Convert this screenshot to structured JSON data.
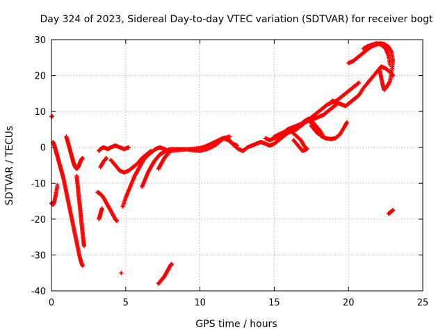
{
  "chart_data": {
    "type": "scatter",
    "title": "Day 324 of 2023, Sidereal Day-to-day VTEC variation (SDTVAR) for receiver bogt",
    "xlabel": "GPS time / hours",
    "ylabel": "SDTVAR / TECUs",
    "xlim": [
      0,
      25
    ],
    "ylim": [
      -40,
      30
    ],
    "xticks": [
      "0",
      "5",
      "10",
      "15",
      "20",
      "25"
    ],
    "yticks": [
      "-40",
      "-30",
      "-20",
      "-10",
      "0",
      "10",
      "20",
      "30"
    ],
    "grid": true,
    "marker": "+",
    "color": "#ff0000",
    "series": [
      {
        "points": [
          [
            0.0,
            8.5
          ],
          [
            0.05,
            8.7
          ],
          [
            0.0,
            -15.5
          ],
          [
            0.1,
            -16.0
          ],
          [
            0.2,
            -15.0
          ],
          [
            0.3,
            -13.0
          ],
          [
            0.4,
            -10.5
          ]
        ]
      },
      {
        "points": [
          [
            0.1,
            1.5
          ],
          [
            0.2,
            0.5
          ],
          [
            0.3,
            -1.0
          ],
          [
            0.4,
            -2.5
          ],
          [
            0.5,
            -4.0
          ],
          [
            0.6,
            -5.5
          ],
          [
            0.7,
            -7.0
          ],
          [
            0.8,
            -8.5
          ],
          [
            0.9,
            -10.5
          ],
          [
            1.0,
            -12.5
          ],
          [
            1.1,
            -14.5
          ],
          [
            1.2,
            -16.5
          ],
          [
            1.3,
            -18.5
          ],
          [
            1.4,
            -20.5
          ],
          [
            1.5,
            -22.5
          ],
          [
            1.6,
            -24.5
          ],
          [
            1.7,
            -26.5
          ],
          [
            1.8,
            -28.5
          ],
          [
            1.9,
            -30.5
          ],
          [
            2.0,
            -32.0
          ],
          [
            2.1,
            -33.0
          ]
        ]
      },
      {
        "points": [
          [
            1.0,
            3.0
          ],
          [
            1.1,
            1.5
          ],
          [
            1.2,
            0.0
          ],
          [
            1.3,
            -1.5
          ],
          [
            1.4,
            -3.0
          ],
          [
            1.5,
            -4.5
          ],
          [
            1.6,
            -5.5
          ],
          [
            1.7,
            -6.0
          ],
          [
            1.8,
            -5.5
          ],
          [
            1.9,
            -4.5
          ],
          [
            2.0,
            -3.5
          ],
          [
            2.1,
            -3.0
          ]
        ]
      },
      {
        "points": [
          [
            1.7,
            -8.0
          ],
          [
            1.75,
            -10.0
          ],
          [
            1.8,
            -12.0
          ],
          [
            1.85,
            -14.0
          ],
          [
            1.9,
            -16.0
          ],
          [
            1.95,
            -18.0
          ],
          [
            2.0,
            -20.0
          ],
          [
            2.05,
            -22.0
          ],
          [
            2.1,
            -24.0
          ],
          [
            2.15,
            -26.0
          ],
          [
            2.2,
            -27.5
          ]
        ]
      },
      {
        "points": [
          [
            3.1,
            -12.5
          ],
          [
            3.3,
            -13.0
          ],
          [
            3.5,
            -14.0
          ],
          [
            3.7,
            -15.5
          ],
          [
            3.9,
            -17.0
          ],
          [
            4.1,
            -18.5
          ],
          [
            4.3,
            -20.0
          ],
          [
            4.4,
            -20.5
          ],
          [
            3.2,
            -20.0
          ],
          [
            3.3,
            -18.5
          ],
          [
            3.4,
            -17.0
          ]
        ]
      },
      {
        "points": [
          [
            3.2,
            -1.0
          ],
          [
            3.3,
            -0.5
          ],
          [
            3.5,
            0.0
          ],
          [
            3.8,
            -0.5
          ],
          [
            4.0,
            0.0
          ],
          [
            4.3,
            0.5
          ],
          [
            4.6,
            0.0
          ],
          [
            4.9,
            -0.5
          ],
          [
            5.2,
            0.0
          ],
          [
            3.3,
            -5.5
          ],
          [
            3.5,
            -4.0
          ],
          [
            3.7,
            -3.0
          ]
        ]
      },
      {
        "points": [
          [
            4.0,
            -3.5
          ],
          [
            4.3,
            -5.0
          ],
          [
            4.6,
            -6.5
          ],
          [
            4.9,
            -7.0
          ],
          [
            5.2,
            -6.5
          ],
          [
            5.5,
            -5.5
          ],
          [
            5.8,
            -4.5
          ],
          [
            6.1,
            -3.0
          ],
          [
            6.4,
            -2.0
          ],
          [
            6.7,
            -1.0
          ]
        ]
      },
      {
        "points": [
          [
            4.8,
            -16.5
          ],
          [
            5.0,
            -14.0
          ],
          [
            5.2,
            -12.0
          ],
          [
            5.4,
            -10.0
          ],
          [
            5.6,
            -8.0
          ],
          [
            5.8,
            -6.5
          ],
          [
            6.0,
            -5.0
          ],
          [
            6.2,
            -3.5
          ],
          [
            6.4,
            -2.5
          ],
          [
            6.7,
            -1.5
          ],
          [
            7.0,
            -0.5
          ],
          [
            7.3,
            0.0
          ],
          [
            7.6,
            -0.5
          ],
          [
            7.9,
            -1.0
          ]
        ]
      },
      {
        "points": [
          [
            6.1,
            -11.0
          ],
          [
            6.3,
            -9.0
          ],
          [
            6.5,
            -7.0
          ],
          [
            6.7,
            -5.5
          ],
          [
            6.9,
            -4.0
          ],
          [
            7.1,
            -3.0
          ],
          [
            7.3,
            -2.0
          ],
          [
            7.5,
            -1.5
          ],
          [
            7.7,
            -1.0
          ],
          [
            8.0,
            -0.5
          ],
          [
            8.5,
            -0.5
          ],
          [
            9.0,
            -0.5
          ],
          [
            9.5,
            -0.8
          ],
          [
            10.0,
            -1.0
          ],
          [
            10.5,
            -0.5
          ],
          [
            11.0,
            0.5
          ],
          [
            11.3,
            1.5
          ],
          [
            11.6,
            2.5
          ],
          [
            11.9,
            2.0
          ],
          [
            12.2,
            1.0
          ],
          [
            12.5,
            0.5
          ]
        ]
      },
      {
        "points": [
          [
            7.2,
            -6.0
          ],
          [
            7.4,
            -4.5
          ],
          [
            7.6,
            -3.0
          ],
          [
            7.8,
            -2.0
          ],
          [
            8.0,
            -1.0
          ],
          [
            8.5,
            -0.8
          ],
          [
            9.0,
            -0.6
          ],
          [
            9.5,
            -0.4
          ],
          [
            10.0,
            -0.2
          ],
          [
            10.5,
            0.5
          ],
          [
            11.0,
            1.5
          ],
          [
            11.5,
            2.5
          ],
          [
            12.0,
            3.0
          ]
        ]
      },
      {
        "points": [
          [
            12.0,
            2.0
          ],
          [
            12.3,
            0.5
          ],
          [
            12.6,
            -0.5
          ],
          [
            12.9,
            -1.0
          ],
          [
            13.2,
            0.0
          ],
          [
            13.5,
            0.5
          ],
          [
            13.8,
            1.0
          ],
          [
            14.1,
            1.5
          ],
          [
            14.4,
            1.0
          ],
          [
            14.7,
            0.5
          ],
          [
            15.0,
            1.0
          ],
          [
            15.3,
            2.0
          ],
          [
            15.6,
            3.0
          ],
          [
            15.9,
            4.0
          ],
          [
            16.2,
            4.5
          ],
          [
            16.5,
            5.0
          ],
          [
            16.8,
            6.0
          ],
          [
            17.1,
            7.0
          ],
          [
            17.4,
            7.5
          ],
          [
            17.7,
            8.0
          ],
          [
            18.0,
            8.5
          ],
          [
            18.3,
            9.0
          ],
          [
            18.6,
            10.0
          ],
          [
            18.9,
            11.0
          ],
          [
            19.2,
            12.0
          ]
        ]
      },
      {
        "points": [
          [
            14.4,
            2.5
          ],
          [
            14.7,
            2.0
          ],
          [
            15.0,
            2.5
          ],
          [
            15.3,
            3.0
          ],
          [
            15.6,
            4.0
          ],
          [
            15.9,
            5.0
          ],
          [
            16.2,
            5.5
          ],
          [
            16.5,
            6.0
          ],
          [
            16.8,
            6.5
          ],
          [
            17.1,
            7.5
          ],
          [
            17.4,
            8.0
          ],
          [
            17.7,
            9.0
          ],
          [
            18.0,
            10.0
          ],
          [
            18.3,
            11.0
          ],
          [
            18.6,
            12.0
          ],
          [
            18.9,
            12.5
          ],
          [
            19.2,
            13.0
          ],
          [
            19.5,
            14.0
          ],
          [
            19.8,
            15.0
          ],
          [
            20.1,
            16.0
          ],
          [
            20.4,
            17.0
          ],
          [
            20.7,
            18.0
          ]
        ]
      },
      {
        "points": [
          [
            15.0,
            3.0
          ],
          [
            15.5,
            4.0
          ],
          [
            16.0,
            5.0
          ],
          [
            16.4,
            3.5
          ],
          [
            16.8,
            2.0
          ],
          [
            17.0,
            0.5
          ],
          [
            17.2,
            -0.5
          ],
          [
            16.9,
            -1.0
          ],
          [
            16.6,
            0.5
          ],
          [
            16.3,
            2.0
          ]
        ]
      },
      {
        "points": [
          [
            17.3,
            8.0
          ],
          [
            17.6,
            6.0
          ],
          [
            17.9,
            4.5
          ],
          [
            18.2,
            3.0
          ],
          [
            18.5,
            2.5
          ],
          [
            18.8,
            2.3
          ],
          [
            19.1,
            2.5
          ],
          [
            19.4,
            3.5
          ],
          [
            19.7,
            5.5
          ],
          [
            19.9,
            7.0
          ]
        ]
      },
      {
        "points": [
          [
            17.5,
            6.0
          ],
          [
            17.7,
            5.0
          ],
          [
            17.9,
            4.0
          ],
          [
            18.1,
            3.5
          ],
          [
            18.3,
            3.0
          ],
          [
            18.1,
            4.5
          ],
          [
            17.9,
            5.5
          ],
          [
            17.7,
            6.5
          ],
          [
            17.5,
            7.5
          ]
        ]
      },
      {
        "points": [
          [
            18.9,
            13.0
          ],
          [
            19.2,
            12.5
          ],
          [
            19.5,
            12.0
          ],
          [
            19.8,
            11.5
          ],
          [
            20.1,
            12.5
          ],
          [
            20.4,
            13.5
          ],
          [
            20.7,
            14.5
          ],
          [
            21.0,
            16.5
          ],
          [
            21.3,
            18.0
          ],
          [
            21.6,
            19.5
          ],
          [
            21.9,
            21.0
          ],
          [
            22.2,
            22.5
          ],
          [
            22.5,
            22.0
          ],
          [
            22.8,
            21.0
          ],
          [
            23.0,
            20.0
          ]
        ]
      },
      {
        "points": [
          [
            20.0,
            23.5
          ],
          [
            20.3,
            24.0
          ],
          [
            20.6,
            25.0
          ],
          [
            20.9,
            26.0
          ],
          [
            21.2,
            27.0
          ],
          [
            21.5,
            28.0
          ],
          [
            21.8,
            28.5
          ],
          [
            22.1,
            29.0
          ],
          [
            22.4,
            28.8
          ],
          [
            22.7,
            28.0
          ],
          [
            22.9,
            26.5
          ],
          [
            23.0,
            24.0
          ],
          [
            22.9,
            21.0
          ],
          [
            22.8,
            18.5
          ],
          [
            22.6,
            17.0
          ],
          [
            22.4,
            16.0
          ],
          [
            22.3,
            17.5
          ],
          [
            22.2,
            19.5
          ],
          [
            22.1,
            21.5
          ]
        ]
      },
      {
        "points": [
          [
            21.0,
            27.5
          ],
          [
            21.3,
            28.2
          ],
          [
            21.6,
            28.6
          ],
          [
            21.9,
            29.0
          ],
          [
            22.2,
            28.6
          ],
          [
            22.5,
            27.5
          ],
          [
            22.7,
            25.5
          ],
          [
            22.8,
            23.0
          ]
        ]
      },
      {
        "points": [
          [
            22.7,
            -18.5
          ],
          [
            22.85,
            -18.0
          ],
          [
            23.0,
            -17.5
          ]
        ]
      },
      {
        "points": [
          [
            4.7,
            -35.0
          ],
          [
            7.2,
            -38.0
          ],
          [
            7.4,
            -37.0
          ],
          [
            7.6,
            -36.0
          ],
          [
            7.8,
            -34.5
          ],
          [
            8.0,
            -33.0
          ],
          [
            8.1,
            -32.5
          ]
        ]
      }
    ]
  }
}
